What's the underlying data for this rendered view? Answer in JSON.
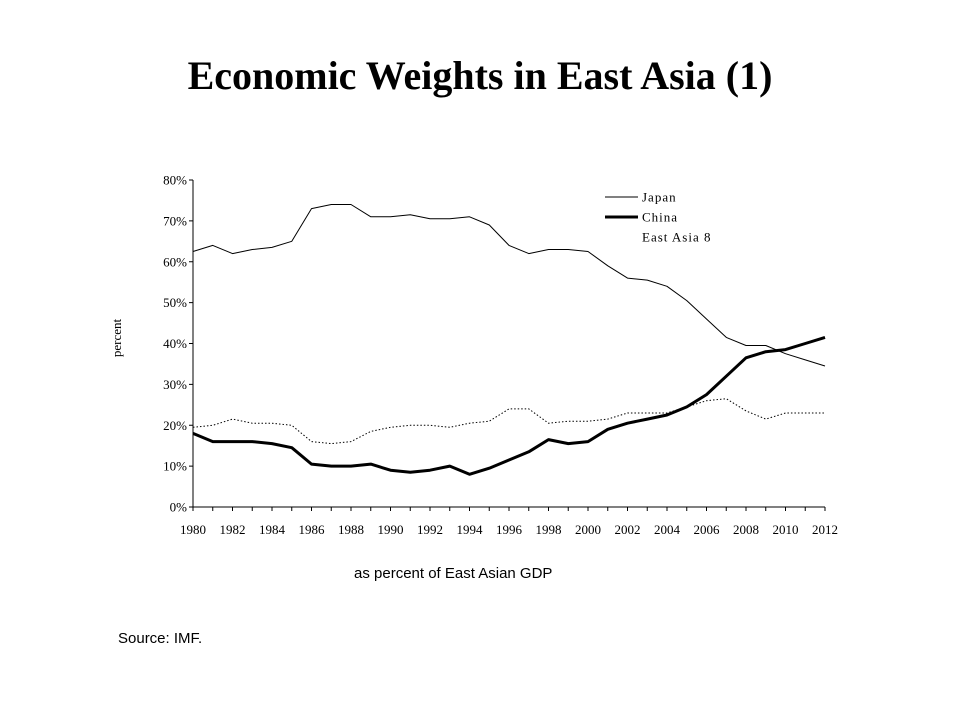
{
  "slide": {
    "title": "Economic Weights in East Asia (1)",
    "caption": "as percent of East Asian GDP",
    "source": "Source: IMF."
  },
  "chart_data": {
    "type": "line",
    "title": "",
    "xlabel": "",
    "ylabel": "percent",
    "ylim": [
      0,
      80
    ],
    "yticks": [
      0,
      10,
      20,
      30,
      40,
      50,
      60,
      70,
      80
    ],
    "ytick_labels": [
      "0%",
      "10%",
      "20%",
      "30%",
      "40%",
      "50%",
      "60%",
      "70%",
      "80%"
    ],
    "xlim": [
      1980,
      2012
    ],
    "xticks": [
      1980,
      1982,
      1984,
      1986,
      1988,
      1990,
      1992,
      1994,
      1996,
      1998,
      2000,
      2002,
      2004,
      2006,
      2008,
      2010,
      2012
    ],
    "xtick_labels": [
      "1980",
      "1982",
      "1984",
      "1986",
      "1988",
      "1990",
      "1992",
      "1994",
      "1996",
      "1998",
      "2000",
      "2002",
      "2004",
      "2006",
      "2008",
      "2010",
      "2012"
    ],
    "grid": false,
    "legend_position": "top-right",
    "x": [
      1980,
      1981,
      1982,
      1983,
      1984,
      1985,
      1986,
      1987,
      1988,
      1989,
      1990,
      1991,
      1992,
      1993,
      1994,
      1995,
      1996,
      1997,
      1998,
      1999,
      2000,
      2001,
      2002,
      2003,
      2004,
      2005,
      2006,
      2007,
      2008,
      2009,
      2010,
      2011,
      2012
    ],
    "series": [
      {
        "name": "Japan",
        "style": "thin-solid",
        "color": "#000000",
        "values": [
          62.5,
          64,
          62,
          63,
          63.5,
          65,
          73,
          74,
          74,
          71,
          71,
          71.5,
          70.5,
          70.5,
          71,
          69,
          64,
          62,
          63,
          63,
          62.5,
          59,
          56,
          55.5,
          54,
          50.5,
          46,
          41.5,
          39.5,
          39.5,
          37.5,
          36,
          34.5
        ]
      },
      {
        "name": "China",
        "style": "thick-solid",
        "color": "#000000",
        "values": [
          18,
          16,
          16,
          16,
          15.5,
          14.5,
          10.5,
          10,
          10,
          10.5,
          9,
          8.5,
          9,
          10,
          8,
          9.5,
          11.5,
          13.5,
          16.5,
          15.5,
          16,
          19,
          20.5,
          21.5,
          22.5,
          24.5,
          27.5,
          32,
          36.5,
          38,
          38.5,
          40,
          41.5
        ]
      },
      {
        "name": "East Asia 8",
        "style": "dotted",
        "color": "#000000",
        "values": [
          19.5,
          20,
          21.5,
          20.5,
          20.5,
          20,
          16,
          15.5,
          16,
          18.5,
          19.5,
          20,
          20,
          19.5,
          20.5,
          21,
          24,
          24,
          20.5,
          21,
          21,
          21.5,
          23,
          23,
          23,
          24.5,
          26,
          26.5,
          23.5,
          21.5,
          23,
          23,
          23
        ]
      }
    ]
  }
}
